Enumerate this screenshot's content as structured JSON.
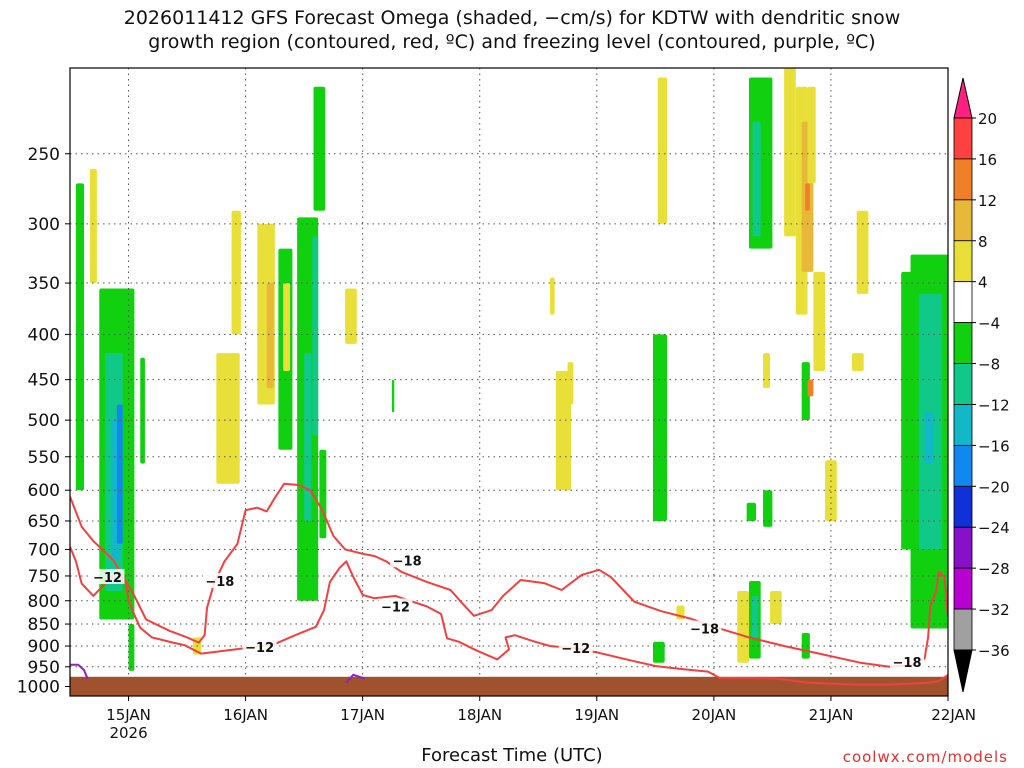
{
  "title_line1": "2026011412 GFS Forecast Omega (shaded, −cm/s) for KDTW with dendritic snow",
  "title_line2": "growth region (contoured, red, ºC) and freezing level (contoured, purple, ºC)",
  "source": "coolwx.com/models",
  "chart_data": {
    "type": "heatmap",
    "xlabel": "Forecast Time (UTC)",
    "ylabel": "",
    "x_ticks": [
      {
        "label": "15JAN",
        "sub": "2026",
        "t": 15.0
      },
      {
        "label": "16JAN",
        "sub": "",
        "t": 16.0
      },
      {
        "label": "17JAN",
        "sub": "",
        "t": 17.0
      },
      {
        "label": "18JAN",
        "sub": "",
        "t": 18.0
      },
      {
        "label": "19JAN",
        "sub": "",
        "t": 19.0
      },
      {
        "label": "20JAN",
        "sub": "",
        "t": 20.0
      },
      {
        "label": "21JAN",
        "sub": "",
        "t": 21.0
      },
      {
        "label": "22JAN",
        "sub": "",
        "t": 22.0
      }
    ],
    "xlim": [
      14.5,
      22.0
    ],
    "y_ticks": [
      250,
      300,
      350,
      400,
      450,
      500,
      550,
      600,
      650,
      700,
      750,
      800,
      850,
      900,
      950,
      1000
    ],
    "y_scale": "log",
    "ylim": [
      200,
      1025
    ],
    "surface_pressure": 975,
    "grid": true,
    "colorbar": {
      "labels": [
        "20",
        "16",
        "12",
        "8",
        "4",
        "−4",
        "−8",
        "−12",
        "−16",
        "−20",
        "−24",
        "−28",
        "−32",
        "−36"
      ],
      "colors": [
        "#ff2080",
        "#ff4040",
        "#ef8028",
        "#e8b838",
        "#e8e038",
        "#ffffff",
        "#10d010",
        "#10c888",
        "#10b8c8",
        "#1088f0",
        "#1030d8",
        "#8810c8",
        "#b800d0",
        "#a0a0a0",
        "#000000"
      ]
    },
    "contour_labels": [
      {
        "text": "−12",
        "t": 14.82,
        "p": 752
      },
      {
        "text": "−18",
        "t": 15.78,
        "p": 760
      },
      {
        "text": "−12",
        "t": 16.12,
        "p": 902
      },
      {
        "text": "−18",
        "t": 17.38,
        "p": 720
      },
      {
        "text": "−12",
        "t": 17.28,
        "p": 812
      },
      {
        "text": "−12",
        "t": 18.82,
        "p": 905
      },
      {
        "text": "−18",
        "t": 19.92,
        "p": 860
      },
      {
        "text": "−18",
        "t": 21.65,
        "p": 938
      }
    ],
    "dgz_contours": [
      {
        "name": "-18",
        "points": [
          [
            14.5,
            610
          ],
          [
            14.6,
            660
          ],
          [
            14.7,
            685
          ],
          [
            14.8,
            705
          ],
          [
            14.87,
            720
          ],
          [
            14.95,
            750
          ],
          [
            15.05,
            790
          ],
          [
            15.15,
            840
          ],
          [
            15.35,
            865
          ],
          [
            15.5,
            880
          ],
          [
            15.6,
            892
          ],
          [
            15.65,
            875
          ],
          [
            15.67,
            815
          ],
          [
            15.73,
            765
          ],
          [
            15.82,
            722
          ],
          [
            15.93,
            690
          ],
          [
            16.0,
            632
          ],
          [
            16.1,
            628
          ],
          [
            16.18,
            634
          ],
          [
            16.25,
            612
          ],
          [
            16.33,
            590
          ],
          [
            16.45,
            592
          ],
          [
            16.55,
            600
          ],
          [
            16.65,
            630
          ],
          [
            16.75,
            676
          ],
          [
            16.85,
            700
          ],
          [
            17.0,
            708
          ],
          [
            17.1,
            712
          ],
          [
            17.2,
            722
          ],
          [
            17.33,
            742
          ],
          [
            17.55,
            762
          ],
          [
            17.75,
            778
          ],
          [
            17.85,
            805
          ],
          [
            17.95,
            832
          ],
          [
            18.1,
            820
          ],
          [
            18.2,
            790
          ],
          [
            18.35,
            758
          ],
          [
            18.55,
            764
          ],
          [
            18.7,
            778
          ],
          [
            18.87,
            748
          ],
          [
            19.02,
            738
          ],
          [
            19.12,
            752
          ],
          [
            19.32,
            802
          ],
          [
            19.55,
            822
          ],
          [
            19.8,
            838
          ],
          [
            20.0,
            856
          ],
          [
            20.3,
            880
          ],
          [
            20.6,
            900
          ],
          [
            20.9,
            918
          ],
          [
            21.25,
            940
          ],
          [
            21.5,
            950
          ],
          [
            21.7,
            945
          ],
          [
            21.8,
            930
          ],
          [
            21.83,
            880
          ],
          [
            21.85,
            810
          ],
          [
            21.9,
            780
          ],
          [
            21.92,
            742
          ],
          [
            21.97,
            752
          ],
          [
            22.0,
            835
          ]
        ]
      },
      {
        "name": "-12",
        "points": [
          [
            14.5,
            695
          ],
          [
            14.55,
            722
          ],
          [
            14.6,
            765
          ],
          [
            14.7,
            790
          ],
          [
            14.85,
            752
          ],
          [
            14.97,
            758
          ],
          [
            14.98,
            765
          ],
          [
            15.0,
            800
          ],
          [
            15.05,
            830
          ],
          [
            15.1,
            858
          ],
          [
            15.2,
            880
          ],
          [
            15.38,
            892
          ],
          [
            15.48,
            898
          ],
          [
            15.62,
            918
          ],
          [
            16.0,
            905
          ],
          [
            16.25,
            895
          ],
          [
            16.45,
            872
          ],
          [
            16.6,
            856
          ],
          [
            16.67,
            820
          ],
          [
            16.72,
            762
          ],
          [
            16.8,
            735
          ],
          [
            16.86,
            722
          ],
          [
            16.92,
            752
          ],
          [
            17.0,
            788
          ],
          [
            17.1,
            795
          ],
          [
            17.28,
            790
          ],
          [
            17.55,
            812
          ],
          [
            17.67,
            828
          ],
          [
            17.72,
            882
          ],
          [
            17.82,
            890
          ],
          [
            17.97,
            910
          ],
          [
            18.15,
            932
          ],
          [
            18.25,
            908
          ],
          [
            18.22,
            880
          ],
          [
            18.3,
            875
          ],
          [
            18.45,
            888
          ],
          [
            18.6,
            900
          ],
          [
            18.8,
            905
          ],
          [
            19.0,
            915
          ],
          [
            19.3,
            935
          ],
          [
            19.5,
            948
          ],
          [
            19.7,
            955
          ],
          [
            19.95,
            962
          ],
          [
            20.05,
            978
          ],
          [
            20.1,
            978
          ],
          [
            20.3,
            978
          ],
          [
            20.55,
            980
          ],
          [
            20.8,
            990
          ],
          [
            21.2,
            995
          ],
          [
            21.5,
            995
          ],
          [
            21.85,
            990
          ],
          [
            21.93,
            985
          ],
          [
            22.0,
            970
          ]
        ]
      }
    ],
    "freezing_contours": [
      {
        "name": "purple",
        "points": [
          [
            14.5,
            945
          ],
          [
            14.57,
            945
          ],
          [
            14.62,
            958
          ],
          [
            14.65,
            980
          ]
        ]
      },
      {
        "name": "purple",
        "points": [
          [
            16.86,
            990
          ],
          [
            16.92,
            970
          ],
          [
            17.02,
            980
          ]
        ]
      }
    ],
    "omega_regions": [
      {
        "t0": 14.55,
        "t1": 14.62,
        "p0": 270,
        "p1": 600,
        "color": "#10d010"
      },
      {
        "t0": 14.67,
        "t1": 14.73,
        "p0": 260,
        "p1": 350,
        "color": "#e8e038"
      },
      {
        "t0": 14.75,
        "t1": 15.05,
        "p0": 355,
        "p1": 840,
        "color": "#10d010"
      },
      {
        "t0": 14.8,
        "t1": 14.95,
        "p0": 420,
        "p1": 780,
        "color": "#10c888"
      },
      {
        "t0": 14.85,
        "t1": 14.93,
        "p0": 500,
        "p1": 720,
        "color": "#10b8c8"
      },
      {
        "t0": 14.9,
        "t1": 14.95,
        "p0": 480,
        "p1": 690,
        "color": "#1088f0"
      },
      {
        "t0": 15.0,
        "t1": 15.05,
        "p0": 850,
        "p1": 960,
        "color": "#10d010"
      },
      {
        "t0": 15.1,
        "t1": 15.14,
        "p0": 425,
        "p1": 560,
        "color": "#10d010"
      },
      {
        "t0": 15.55,
        "t1": 15.62,
        "p0": 880,
        "p1": 920,
        "color": "#e8e038"
      },
      {
        "t0": 15.75,
        "t1": 15.95,
        "p0": 420,
        "p1": 590,
        "color": "#e8e038"
      },
      {
        "t0": 15.88,
        "t1": 15.96,
        "p0": 290,
        "p1": 400,
        "color": "#e8e038"
      },
      {
        "t0": 16.1,
        "t1": 16.25,
        "p0": 300,
        "p1": 480,
        "color": "#e8e038"
      },
      {
        "t0": 16.18,
        "t1": 16.24,
        "p0": 350,
        "p1": 460,
        "color": "#e8b838"
      },
      {
        "t0": 16.28,
        "t1": 16.4,
        "p0": 320,
        "p1": 540,
        "color": "#10d010"
      },
      {
        "t0": 16.32,
        "t1": 16.38,
        "p0": 350,
        "p1": 440,
        "color": "#e8e038"
      },
      {
        "t0": 16.44,
        "t1": 16.62,
        "p0": 295,
        "p1": 800,
        "color": "#10d010"
      },
      {
        "t0": 16.5,
        "t1": 16.56,
        "p0": 420,
        "p1": 650,
        "color": "#10c888"
      },
      {
        "t0": 16.57,
        "t1": 16.62,
        "p0": 310,
        "p1": 520,
        "color": "#10c888"
      },
      {
        "t0": 16.63,
        "t1": 16.69,
        "p0": 540,
        "p1": 680,
        "color": "#10d010"
      },
      {
        "t0": 16.58,
        "t1": 16.68,
        "p0": 210,
        "p1": 290,
        "color": "#10d010"
      },
      {
        "t0": 16.85,
        "t1": 16.95,
        "p0": 355,
        "p1": 410,
        "color": "#e8e038"
      },
      {
        "t0": 17.25,
        "t1": 17.27,
        "p0": 450,
        "p1": 490,
        "color": "#10d010"
      },
      {
        "t0": 18.6,
        "t1": 18.64,
        "p0": 345,
        "p1": 380,
        "color": "#e8e038"
      },
      {
        "t0": 18.65,
        "t1": 18.78,
        "p0": 440,
        "p1": 600,
        "color": "#e8e038"
      },
      {
        "t0": 18.75,
        "t1": 18.8,
        "p0": 430,
        "p1": 480,
        "color": "#e8e038"
      },
      {
        "t0": 19.52,
        "t1": 19.6,
        "p0": 205,
        "p1": 300,
        "color": "#e8e038"
      },
      {
        "t0": 19.48,
        "t1": 19.6,
        "p0": 400,
        "p1": 650,
        "color": "#10d010"
      },
      {
        "t0": 19.48,
        "t1": 19.58,
        "p0": 890,
        "p1": 940,
        "color": "#10d010"
      },
      {
        "t0": 19.68,
        "t1": 19.75,
        "p0": 810,
        "p1": 840,
        "color": "#e8e038"
      },
      {
        "t0": 20.2,
        "t1": 20.3,
        "p0": 780,
        "p1": 940,
        "color": "#e8e038"
      },
      {
        "t0": 20.28,
        "t1": 20.36,
        "p0": 620,
        "p1": 650,
        "color": "#10d010"
      },
      {
        "t0": 20.3,
        "t1": 20.5,
        "p0": 205,
        "p1": 320,
        "color": "#10d010"
      },
      {
        "t0": 20.33,
        "t1": 20.4,
        "p0": 230,
        "p1": 310,
        "color": "#10c888"
      },
      {
        "t0": 20.3,
        "t1": 20.4,
        "p0": 760,
        "p1": 930,
        "color": "#10d010"
      },
      {
        "t0": 20.32,
        "t1": 20.38,
        "p0": 790,
        "p1": 880,
        "color": "#10c888"
      },
      {
        "t0": 20.42,
        "t1": 20.5,
        "p0": 600,
        "p1": 660,
        "color": "#10d010"
      },
      {
        "t0": 20.42,
        "t1": 20.48,
        "p0": 420,
        "p1": 460,
        "color": "#e8e038"
      },
      {
        "t0": 20.48,
        "t1": 20.58,
        "p0": 780,
        "p1": 850,
        "color": "#e8e038"
      },
      {
        "t0": 20.6,
        "t1": 20.7,
        "p0": 200,
        "p1": 310,
        "color": "#e8e038"
      },
      {
        "t0": 20.7,
        "t1": 20.8,
        "p0": 210,
        "p1": 380,
        "color": "#e8e038"
      },
      {
        "t0": 20.75,
        "t1": 20.85,
        "p0": 230,
        "p1": 340,
        "color": "#e8b838"
      },
      {
        "t0": 20.78,
        "t1": 20.82,
        "p0": 270,
        "p1": 290,
        "color": "#ef8028"
      },
      {
        "t0": 20.8,
        "t1": 20.87,
        "p0": 210,
        "p1": 270,
        "color": "#e8e038"
      },
      {
        "t0": 20.85,
        "t1": 20.95,
        "p0": 340,
        "p1": 440,
        "color": "#e8e038"
      },
      {
        "t0": 20.75,
        "t1": 20.82,
        "p0": 430,
        "p1": 500,
        "color": "#10d010"
      },
      {
        "t0": 20.8,
        "t1": 20.85,
        "p0": 450,
        "p1": 470,
        "color": "#ef8028"
      },
      {
        "t0": 20.75,
        "t1": 20.82,
        "p0": 870,
        "p1": 930,
        "color": "#10d010"
      },
      {
        "t0": 20.95,
        "t1": 21.05,
        "p0": 555,
        "p1": 650,
        "color": "#e8e038"
      },
      {
        "t0": 21.22,
        "t1": 21.32,
        "p0": 290,
        "p1": 360,
        "color": "#e8e038"
      },
      {
        "t0": 21.18,
        "t1": 21.28,
        "p0": 420,
        "p1": 440,
        "color": "#e8e038"
      },
      {
        "t0": 21.6,
        "t1": 21.7,
        "p0": 340,
        "p1": 700,
        "color": "#10d010"
      },
      {
        "t0": 21.68,
        "t1": 22.0,
        "p0": 325,
        "p1": 860,
        "color": "#10d010"
      },
      {
        "t0": 21.75,
        "t1": 21.95,
        "p0": 360,
        "p1": 700,
        "color": "#10c888"
      },
      {
        "t0": 21.8,
        "t1": 21.88,
        "p0": 490,
        "p1": 560,
        "color": "#10b8c8"
      }
    ]
  }
}
